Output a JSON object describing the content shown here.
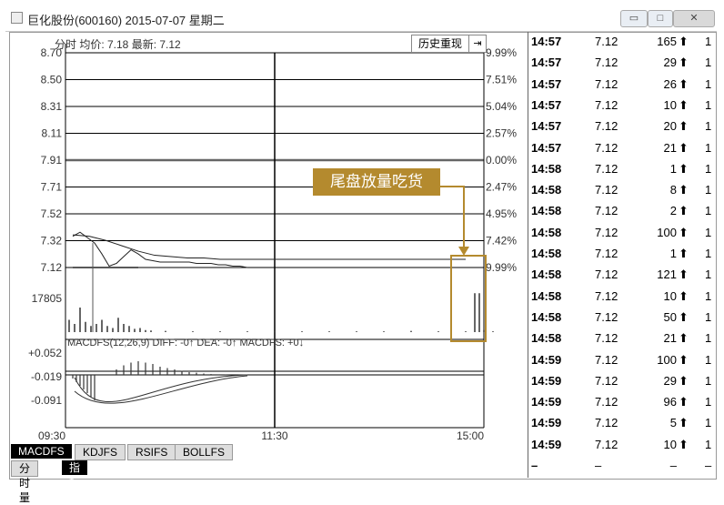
{
  "window": {
    "title": "巨化股份(600160) 2015-07-07 星期二",
    "controls": [
      "▭",
      "□",
      "✕"
    ]
  },
  "info_bar": {
    "label": "分时 均价: 7.18 最新: 7.12",
    "history_button": "历史重现",
    "arrow_button": "⇥"
  },
  "annotation": "尾盘放量吃货",
  "macd_label": "MACDFS(12,26,9) DIFF: -0↑ DEA: -0↑ MACDFS: +0↓",
  "chart_data": [
    {
      "type": "line",
      "title": "",
      "xlabel": "",
      "ylabel": "",
      "price_ticks": [
        "8.70",
        "8.50",
        "8.31",
        "8.11",
        "7.91",
        "7.71",
        "7.52",
        "7.32",
        "7.12"
      ],
      "percent_ticks": [
        "9.99%",
        "7.51%",
        "5.04%",
        "2.57%",
        "0.00%",
        "2.47%",
        "4.95%",
        "7.42%",
        "9.99%"
      ],
      "volume_tick": "17805",
      "time_ticks": [
        "09:30",
        "11:30",
        "15:00"
      ],
      "prev_close": 7.91,
      "ylim": [
        7.12,
        8.7
      ],
      "series": [
        {
          "values": [
            7.35,
            7.38,
            7.34,
            7.3,
            7.22,
            7.13,
            7.15,
            7.2,
            7.25,
            7.22,
            7.18,
            7.17,
            7.16,
            7.16,
            7.16,
            7.16,
            7.16,
            7.15,
            7.15,
            7.15,
            7.14,
            7.14,
            7.13,
            7.13,
            7.12
          ]
        },
        {
          "values": [
            7.36,
            7.35,
            7.32,
            7.28,
            7.24,
            7.21,
            7.2,
            7.19,
            7.19,
            7.18,
            7.18,
            7.18,
            7.18,
            7.18,
            7.18,
            7.18,
            7.18,
            7.18,
            7.18,
            7.18,
            7.18,
            7.18,
            7.18,
            7.18,
            7.18
          ]
        }
      ],
      "volume": [
        0.3,
        0.2,
        0.6,
        0.25,
        0.15,
        0.2,
        0.3,
        0.15,
        0.1,
        0.35,
        0.2,
        0.15,
        0.08,
        0.1,
        0.05,
        0.04,
        0.03,
        0.02,
        0.02,
        0.02,
        0.02,
        0.02,
        0.02,
        0.02,
        0.02,
        0.03,
        0.02,
        0.02,
        0.02,
        0.95,
        0.95,
        0.05
      ]
    },
    {
      "type": "bar",
      "ticks": [
        "+0.052",
        "-0.019",
        "-0.091"
      ],
      "values": [
        0.02,
        0.035,
        0.045,
        0.05,
        0.045,
        0.04,
        0.03,
        0.025,
        0.02,
        0.015,
        0.01,
        0.008,
        0.005,
        0.003,
        0.002,
        0.001,
        0.0,
        0.0,
        0.0,
        0.0
      ]
    }
  ],
  "tabs_row1": [
    "MACDFS",
    "KDJFS",
    "RSIFS",
    "BOLLFS"
  ],
  "tabs_row2": [
    "分时量",
    "指标"
  ],
  "trades": [
    {
      "time": "14:57",
      "price": "7.12",
      "vol": "165",
      "dir": "up",
      "last": "1"
    },
    {
      "time": "14:57",
      "price": "7.12",
      "vol": "29",
      "dir": "up",
      "last": "1"
    },
    {
      "time": "14:57",
      "price": "7.12",
      "vol": "26",
      "dir": "up",
      "last": "1"
    },
    {
      "time": "14:57",
      "price": "7.12",
      "vol": "10",
      "dir": "up",
      "last": "1"
    },
    {
      "time": "14:57",
      "price": "7.12",
      "vol": "20",
      "dir": "up",
      "last": "1"
    },
    {
      "time": "14:57",
      "price": "7.12",
      "vol": "21",
      "dir": "up",
      "last": "1"
    },
    {
      "time": "14:58",
      "price": "7.12",
      "vol": "1",
      "dir": "up",
      "last": "1"
    },
    {
      "time": "14:58",
      "price": "7.12",
      "vol": "8",
      "dir": "up",
      "last": "1"
    },
    {
      "time": "14:58",
      "price": "7.12",
      "vol": "2",
      "dir": "up",
      "last": "1"
    },
    {
      "time": "14:58",
      "price": "7.12",
      "vol": "100",
      "dir": "up",
      "last": "1"
    },
    {
      "time": "14:58",
      "price": "7.12",
      "vol": "1",
      "dir": "up",
      "last": "1"
    },
    {
      "time": "14:58",
      "price": "7.12",
      "vol": "121",
      "dir": "up",
      "last": "1"
    },
    {
      "time": "14:58",
      "price": "7.12",
      "vol": "10",
      "dir": "up",
      "last": "1"
    },
    {
      "time": "14:58",
      "price": "7.12",
      "vol": "50",
      "dir": "up",
      "last": "1"
    },
    {
      "time": "14:58",
      "price": "7.12",
      "vol": "21",
      "dir": "up",
      "last": "1"
    },
    {
      "time": "14:59",
      "price": "7.12",
      "vol": "100",
      "dir": "up",
      "last": "1"
    },
    {
      "time": "14:59",
      "price": "7.12",
      "vol": "29",
      "dir": "up",
      "last": "1"
    },
    {
      "time": "14:59",
      "price": "7.12",
      "vol": "96",
      "dir": "up",
      "last": "1"
    },
    {
      "time": "14:59",
      "price": "7.12",
      "vol": "5",
      "dir": "up",
      "last": "1"
    },
    {
      "time": "14:59",
      "price": "7.12",
      "vol": "10",
      "dir": "up",
      "last": "1"
    }
  ],
  "colors": {
    "accent": "#b48a2e",
    "grid": "#000000"
  }
}
